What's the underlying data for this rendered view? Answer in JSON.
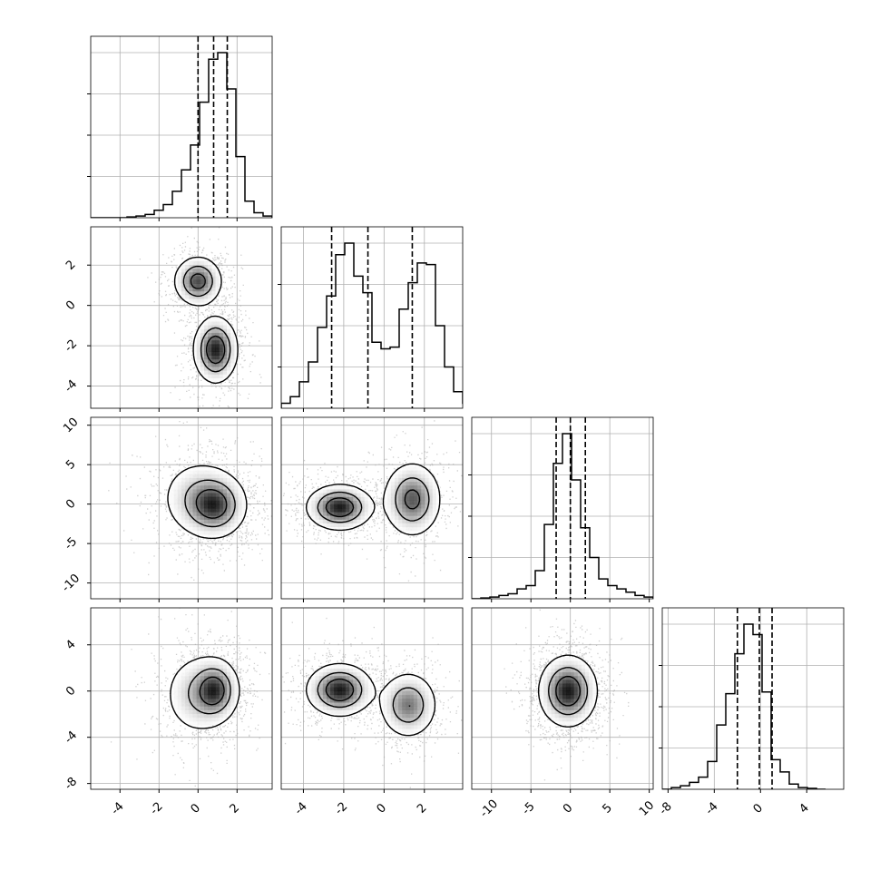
{
  "chart_data": {
    "type": "corner",
    "grid": true,
    "quantile_lines": "dashed",
    "parameters": [
      {
        "xlim": [
          -5.5,
          3.8
        ],
        "xticks": [
          "-4",
          "-2",
          "0",
          "2"
        ],
        "xtick_values": [
          -4,
          -2,
          0,
          2
        ],
        "yticks": [
          "-4",
          "-2",
          "0",
          "2"
        ],
        "ytick_values": [
          -4,
          -2,
          0,
          2
        ],
        "ylim": [
          -5.1,
          3.9
        ],
        "quantiles": [
          0.0,
          0.8,
          1.5
        ]
      },
      {
        "xlim": [
          -5.1,
          3.9
        ],
        "xticks": [
          "-4",
          "-2",
          "0",
          "2"
        ],
        "xtick_values": [
          -4,
          -2,
          0,
          2
        ],
        "yticks": [
          "-10",
          "-5",
          "0",
          "5",
          "10"
        ],
        "ytick_values": [
          -10,
          -5,
          0,
          5,
          10
        ],
        "ylim": [
          -12,
          11
        ],
        "quantiles": [
          -2.6,
          -0.8,
          1.4
        ]
      },
      {
        "xlim": [
          -12.5,
          10.5
        ],
        "xticks": [
          "-10",
          "-5",
          "0",
          "5",
          "10"
        ],
        "xtick_values": [
          -10,
          -5,
          0,
          5,
          10
        ],
        "yticks": [
          "-8",
          "-4",
          "0",
          "4"
        ],
        "ytick_values": [
          -8,
          -4,
          0,
          4
        ],
        "ylim": [
          -8.5,
          7.2
        ],
        "quantiles": [
          -1.8,
          0.0,
          1.9
        ]
      },
      {
        "xlim": [
          -8.5,
          7.2
        ],
        "xticks": [
          "-8",
          "-4",
          "0",
          "4"
        ],
        "xtick_values": [
          -8,
          -4,
          0,
          4
        ],
        "quantiles": [
          -2.0,
          -0.1,
          1.0
        ]
      }
    ],
    "histograms": [
      {
        "edges_start": -5.5,
        "bin_width": 0.465,
        "values": [
          0,
          0,
          0,
          0,
          0.005,
          0.01,
          0.02,
          0.045,
          0.08,
          0.16,
          0.29,
          0.44,
          0.7,
          0.96,
          1.0,
          0.78,
          0.37,
          0.1,
          0.03,
          0.01
        ]
      },
      {
        "edges_start": -5.1,
        "bin_width": 0.45,
        "values": [
          0.03,
          0.07,
          0.16,
          0.28,
          0.49,
          0.68,
          0.93,
          1.0,
          0.8,
          0.7,
          0.4,
          0.36,
          0.37,
          0.6,
          0.76,
          0.88,
          0.87,
          0.5,
          0.25,
          0.1,
          0.03,
          0.01
        ]
      },
      {
        "edges_start": -12.5,
        "bin_width": 1.15,
        "values": [
          0,
          0.005,
          0.01,
          0.02,
          0.03,
          0.06,
          0.08,
          0.17,
          0.45,
          0.82,
          1.0,
          0.72,
          0.43,
          0.25,
          0.12,
          0.08,
          0.06,
          0.04,
          0.02,
          0.01
        ]
      },
      {
        "edges_start": -8.5,
        "bin_width": 0.785,
        "values": [
          0,
          0.01,
          0.02,
          0.04,
          0.07,
          0.16,
          0.37,
          0.55,
          0.78,
          0.95,
          0.89,
          0.56,
          0.17,
          0.1,
          0.03,
          0.01,
          0.005,
          0
        ]
      }
    ],
    "panels_2d": [
      {
        "row": 1,
        "col": 0,
        "modes": [
          {
            "x": 0.9,
            "y": -2.2,
            "sx": 0.55,
            "sy": 0.8,
            "w": 1.0
          },
          {
            "x": 0.0,
            "y": 1.2,
            "sx": 0.6,
            "sy": 0.6,
            "w": 0.85
          }
        ]
      },
      {
        "row": 2,
        "col": 0,
        "modes": [
          {
            "x": 0.9,
            "y": -0.2,
            "sx": 0.8,
            "sy": 2.0,
            "w": 1.0
          },
          {
            "x": 0.0,
            "y": 0.8,
            "sx": 1.0,
            "sy": 2.5,
            "w": 0.5
          }
        ]
      },
      {
        "row": 2,
        "col": 1,
        "modes": [
          {
            "x": -2.2,
            "y": -0.4,
            "sx": 0.8,
            "sy": 1.4,
            "w": 1.0
          },
          {
            "x": 1.4,
            "y": 0.6,
            "sx": 0.7,
            "sy": 2.3,
            "w": 0.8
          }
        ]
      },
      {
        "row": 3,
        "col": 0,
        "modes": [
          {
            "x": 0.9,
            "y": 0.1,
            "sx": 0.6,
            "sy": 1.3,
            "w": 1.0
          },
          {
            "x": 0.0,
            "y": -0.3,
            "sx": 0.9,
            "sy": 1.8,
            "w": 0.55
          }
        ]
      },
      {
        "row": 3,
        "col": 1,
        "modes": [
          {
            "x": -2.2,
            "y": 0.1,
            "sx": 0.8,
            "sy": 1.1,
            "w": 1.0
          },
          {
            "x": 1.2,
            "y": -1.2,
            "sx": 0.7,
            "sy": 1.4,
            "w": 0.7
          }
        ]
      },
      {
        "row": 3,
        "col": 2,
        "modes": [
          {
            "x": -0.3,
            "y": 0.0,
            "sx": 1.8,
            "sy": 1.5,
            "w": 1.0
          }
        ]
      }
    ]
  }
}
